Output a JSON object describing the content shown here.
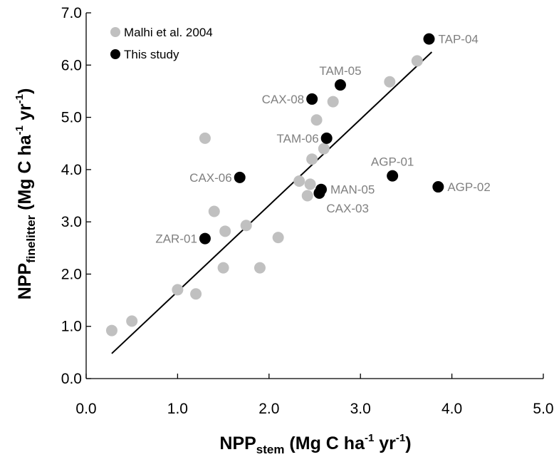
{
  "chart_data": {
    "type": "scatter",
    "title": "",
    "x_axis": {
      "label_main": "NPP",
      "label_sub": "stem",
      "label_units_pre": " (Mg C ha",
      "label_sup1": "-1",
      "label_units_mid": " yr",
      "label_sup2": "-1",
      "label_units_post": ")",
      "range": [
        0,
        5
      ],
      "ticks": [
        0,
        1,
        2,
        3,
        4,
        5
      ],
      "tick_labels": [
        "0.0",
        "1.0",
        "2.0",
        "3.0",
        "4.0",
        "5.0"
      ]
    },
    "y_axis": {
      "label_main": "NPP",
      "label_sub": "finelitter",
      "label_units_pre": " (Mg C ha",
      "label_sup1": "-1",
      "label_units_mid": " yr",
      "label_sup2": "-1",
      "label_units_post": ")",
      "range": [
        0,
        7
      ],
      "ticks": [
        0,
        1,
        2,
        3,
        4,
        5,
        6,
        7
      ],
      "tick_labels": [
        "0.0",
        "1.0",
        "2.0",
        "3.0",
        "4.0",
        "5.0",
        "6.0",
        "7.0"
      ]
    },
    "grid": false,
    "legend": {
      "placement": "top-left"
    },
    "series": [
      {
        "name": "Malhi et al. 2004",
        "color": "#c0c0c0",
        "points": [
          {
            "x": 0.28,
            "y": 0.92
          },
          {
            "x": 0.5,
            "y": 1.1
          },
          {
            "x": 1.0,
            "y": 1.7
          },
          {
            "x": 1.2,
            "y": 1.62
          },
          {
            "x": 1.3,
            "y": 4.6
          },
          {
            "x": 1.4,
            "y": 3.2
          },
          {
            "x": 1.5,
            "y": 2.12
          },
          {
            "x": 1.52,
            "y": 2.82
          },
          {
            "x": 1.75,
            "y": 2.93
          },
          {
            "x": 1.9,
            "y": 2.12
          },
          {
            "x": 2.1,
            "y": 2.7
          },
          {
            "x": 2.33,
            "y": 3.78
          },
          {
            "x": 2.42,
            "y": 3.5
          },
          {
            "x": 2.45,
            "y": 3.72
          },
          {
            "x": 2.47,
            "y": 4.2
          },
          {
            "x": 2.52,
            "y": 4.95
          },
          {
            "x": 2.6,
            "y": 4.4
          },
          {
            "x": 2.7,
            "y": 5.3
          },
          {
            "x": 3.32,
            "y": 5.68
          },
          {
            "x": 3.62,
            "y": 6.08
          }
        ]
      },
      {
        "name": "This study",
        "color": "#000000",
        "points": [
          {
            "x": 1.3,
            "y": 2.68,
            "label": "ZAR-01",
            "label_side": "left"
          },
          {
            "x": 1.68,
            "y": 3.85,
            "label": "CAX-06",
            "label_side": "left"
          },
          {
            "x": 2.47,
            "y": 5.35,
            "label": "CAX-08",
            "label_side": "left"
          },
          {
            "x": 2.78,
            "y": 5.62,
            "label": "TAM-05",
            "label_side": "above"
          },
          {
            "x": 2.63,
            "y": 4.6,
            "label": "TAM-06",
            "label_side": "left"
          },
          {
            "x": 2.57,
            "y": 3.62,
            "label": "MAN-05",
            "label_side": "right"
          },
          {
            "x": 2.55,
            "y": 3.55,
            "label": "CAX-03",
            "label_side": "below-right"
          },
          {
            "x": 3.35,
            "y": 3.88,
            "label": "AGP-01",
            "label_side": "above"
          },
          {
            "x": 3.85,
            "y": 3.67,
            "label": "AGP-02",
            "label_side": "right"
          },
          {
            "x": 3.75,
            "y": 6.5,
            "label": "TAP-04",
            "label_side": "right"
          }
        ]
      }
    ],
    "regression_line": {
      "color": "#000000",
      "points": [
        {
          "x": 0.28,
          "y": 0.48
        },
        {
          "x": 3.78,
          "y": 6.25
        }
      ]
    }
  }
}
